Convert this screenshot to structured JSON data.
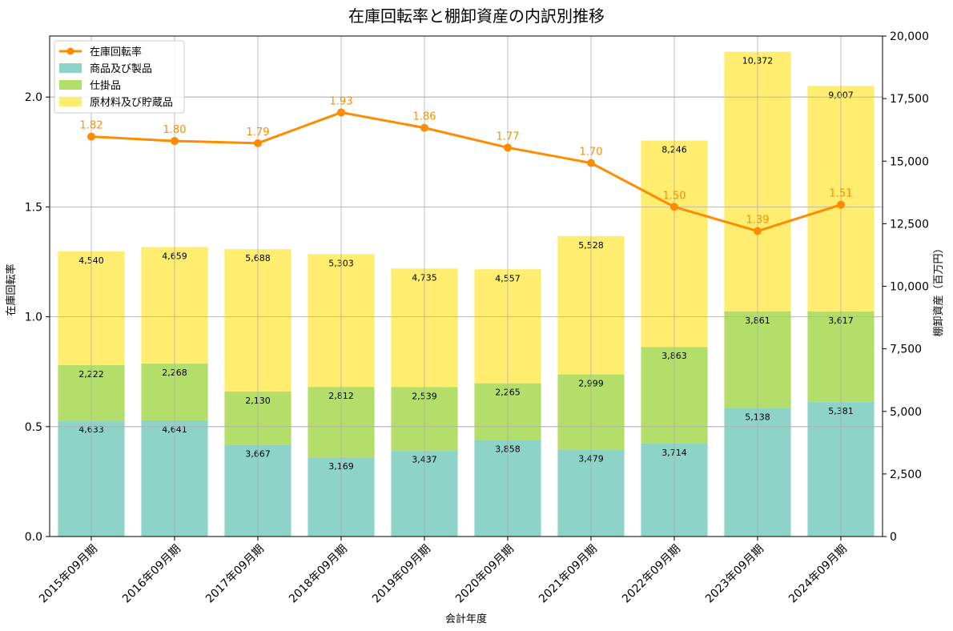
{
  "chart_data": {
    "type": "bar",
    "stacked": true,
    "title": "在庫回転率と棚卸資産の内訳別推移",
    "xlabel": "会計年度",
    "ylabel_left": "在庫回転率",
    "ylabel_right": "棚卸資産（百万円）",
    "categories": [
      "2015年09月期",
      "2016年09月期",
      "2017年09月期",
      "2018年09月期",
      "2019年09月期",
      "2020年09月期",
      "2021年09月期",
      "2022年09月期",
      "2023年09月期",
      "2024年09月期"
    ],
    "series": [
      {
        "name": "商品及び製品",
        "color": "#8dd3c7",
        "axis": "right",
        "values": [
          4633,
          4641,
          3667,
          3169,
          3437,
          3858,
          3479,
          3714,
          5138,
          5381
        ],
        "labels": [
          "4,633",
          "4,641",
          "3,667",
          "3,169",
          "3,437",
          "3,858",
          "3,479",
          "3,714",
          "5,138",
          "5,381"
        ]
      },
      {
        "name": "仕掛品",
        "color": "#b3de69",
        "axis": "right",
        "values": [
          2222,
          2268,
          2130,
          2812,
          2539,
          2265,
          2999,
          3863,
          3861,
          3617
        ],
        "labels": [
          "2,222",
          "2,268",
          "2,130",
          "2,812",
          "2,539",
          "2,265",
          "2,999",
          "3,863",
          "3,861",
          "3,617"
        ]
      },
      {
        "name": "原材料及び貯蔵品",
        "color": "#ffed6f",
        "axis": "right",
        "values": [
          4540,
          4659,
          5688,
          5303,
          4735,
          4557,
          5528,
          8246,
          10372,
          9007
        ],
        "labels": [
          "4,540",
          "4,659",
          "5,688",
          "5,303",
          "4,735",
          "4,557",
          "5,528",
          "8,246",
          "10,372",
          "9,007"
        ]
      }
    ],
    "line": {
      "name": "在庫回転率",
      "color": "#ff8c00",
      "axis": "left",
      "values": [
        1.82,
        1.8,
        1.79,
        1.93,
        1.86,
        1.77,
        1.7,
        1.5,
        1.39,
        1.51
      ],
      "labels": [
        "1.82",
        "1.80",
        "1.79",
        "1.93",
        "1.86",
        "1.77",
        "1.70",
        "1.50",
        "1.39",
        "1.51"
      ]
    },
    "ylim_left": [
      0,
      2.2777
    ],
    "ylim_right": [
      0,
      20000
    ],
    "left_ticks": [
      0.0,
      0.5,
      1.0,
      1.5,
      2.0
    ],
    "left_tick_labels": [
      "0.0",
      "0.5",
      "1.0",
      "1.5",
      "2.0"
    ],
    "right_ticks": [
      0,
      2500,
      5000,
      7500,
      10000,
      12500,
      15000,
      17500,
      20000
    ],
    "right_tick_labels": [
      "0",
      "2,500",
      "5,000",
      "7,500",
      "10,000",
      "12,500",
      "15,000",
      "17,500",
      "20,000"
    ],
    "legend": {
      "position": "top-left",
      "entries": [
        "在庫回転率",
        "商品及び製品",
        "仕掛品",
        "原材料及び貯蔵品"
      ]
    },
    "grid": true
  }
}
